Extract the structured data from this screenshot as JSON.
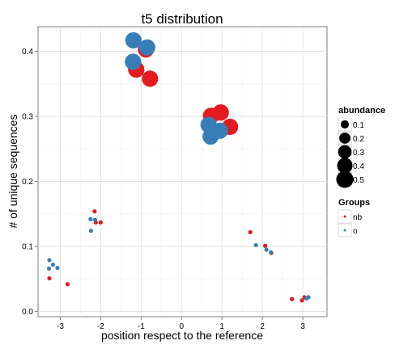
{
  "chart_data": {
    "type": "scatter",
    "title": "t5 distribution",
    "xlabel": "position respect to the reference",
    "ylabel": "# of unique sequences",
    "xlim": [
      -3.55,
      3.6
    ],
    "ylim": [
      -0.008,
      0.438
    ],
    "x_ticks": [
      -3,
      -2,
      -1,
      0,
      1,
      2,
      3
    ],
    "x_tick_labels": [
      "-3",
      "-2",
      "-1",
      "0",
      "1",
      "2",
      "3"
    ],
    "y_ticks": [
      0.0,
      0.1,
      0.2,
      0.3,
      0.4
    ],
    "y_tick_labels": [
      "0.0",
      "0.1",
      "0.2",
      "0.3",
      "0.4"
    ],
    "grid": true,
    "legend_placement": "right",
    "legends": {
      "size": {
        "title": "abundance",
        "entries": [
          {
            "label": "0.1",
            "value": 0.1
          },
          {
            "label": "0.2",
            "value": 0.2
          },
          {
            "label": "0.3",
            "value": 0.3
          },
          {
            "label": "0.4",
            "value": 0.4
          },
          {
            "label": "0.5",
            "value": 0.5
          }
        ]
      },
      "color": {
        "title": "Groups",
        "entries": [
          {
            "label": "nb",
            "color": "#e41a1c"
          },
          {
            "label": "o",
            "color": "#377eb8"
          }
        ]
      }
    },
    "series": [
      {
        "name": "nb",
        "color": "#e41a1c",
        "points": [
          {
            "x": -3.27,
            "y": 0.051,
            "abundance": 0.02
          },
          {
            "x": -2.82,
            "y": 0.042,
            "abundance": 0.02
          },
          {
            "x": -2.15,
            "y": 0.154,
            "abundance": 0.02
          },
          {
            "x": -2.12,
            "y": 0.137,
            "abundance": 0.02
          },
          {
            "x": -2.0,
            "y": 0.137,
            "abundance": 0.02
          },
          {
            "x": -1.12,
            "y": 0.372,
            "abundance": 0.45
          },
          {
            "x": -0.88,
            "y": 0.403,
            "abundance": 0.45
          },
          {
            "x": -0.78,
            "y": 0.358,
            "abundance": 0.45
          },
          {
            "x": 0.73,
            "y": 0.301,
            "abundance": 0.45
          },
          {
            "x": 0.97,
            "y": 0.306,
            "abundance": 0.45
          },
          {
            "x": 1.2,
            "y": 0.284,
            "abundance": 0.45
          },
          {
            "x": 1.7,
            "y": 0.122,
            "abundance": 0.02
          },
          {
            "x": 2.07,
            "y": 0.101,
            "abundance": 0.02
          },
          {
            "x": 2.22,
            "y": 0.09,
            "abundance": 0.02
          },
          {
            "x": 2.73,
            "y": 0.019,
            "abundance": 0.02
          },
          {
            "x": 2.98,
            "y": 0.017,
            "abundance": 0.02
          },
          {
            "x": 3.04,
            "y": 0.022,
            "abundance": 0.02
          }
        ]
      },
      {
        "name": "o",
        "color": "#377eb8",
        "points": [
          {
            "x": -3.27,
            "y": 0.079,
            "abundance": 0.02
          },
          {
            "x": -3.28,
            "y": 0.066,
            "abundance": 0.02
          },
          {
            "x": -3.18,
            "y": 0.072,
            "abundance": 0.02
          },
          {
            "x": -3.07,
            "y": 0.067,
            "abundance": 0.02
          },
          {
            "x": -2.25,
            "y": 0.142,
            "abundance": 0.02
          },
          {
            "x": -2.24,
            "y": 0.124,
            "abundance": 0.02
          },
          {
            "x": -2.14,
            "y": 0.141,
            "abundance": 0.02
          },
          {
            "x": -1.19,
            "y": 0.417,
            "abundance": 0.45
          },
          {
            "x": -1.2,
            "y": 0.384,
            "abundance": 0.45
          },
          {
            "x": -0.85,
            "y": 0.406,
            "abundance": 0.45
          },
          {
            "x": 0.67,
            "y": 0.287,
            "abundance": 0.45
          },
          {
            "x": 0.72,
            "y": 0.269,
            "abundance": 0.45
          },
          {
            "x": 0.95,
            "y": 0.278,
            "abundance": 0.45
          },
          {
            "x": 1.84,
            "y": 0.102,
            "abundance": 0.02
          },
          {
            "x": 2.1,
            "y": 0.095,
            "abundance": 0.02
          },
          {
            "x": 2.21,
            "y": 0.091,
            "abundance": 0.02
          },
          {
            "x": 3.09,
            "y": 0.02,
            "abundance": 0.02
          },
          {
            "x": 3.14,
            "y": 0.022,
            "abundance": 0.02
          }
        ]
      }
    ]
  }
}
